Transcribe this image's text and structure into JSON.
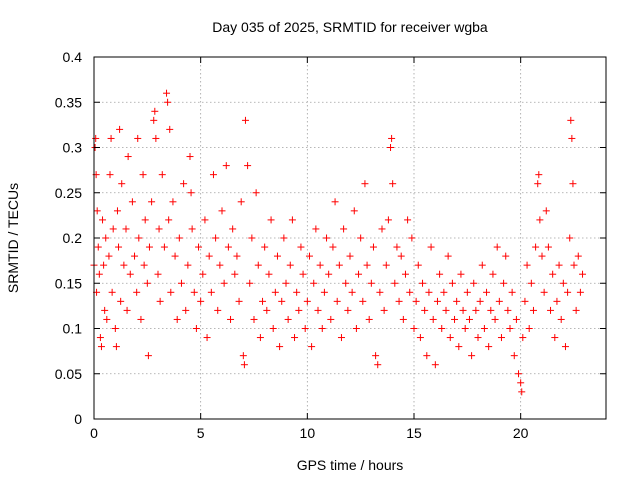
{
  "chart_data": {
    "type": "scatter",
    "title": "Day 035 of 2025, SRMTID for receiver wgba",
    "xlabel": "GPS time / hours",
    "ylabel": "SRMTID / TECUs",
    "xlim": [
      0,
      24
    ],
    "ylim": [
      0,
      0.4
    ],
    "xticks": [
      0,
      5,
      10,
      15,
      20
    ],
    "xtick_labels": [
      "0",
      "5",
      "10",
      "15",
      "20"
    ],
    "yticks": [
      0,
      0.05,
      0.1,
      0.15,
      0.2,
      0.25,
      0.3,
      0.35,
      0.4
    ],
    "ytick_labels": [
      "0",
      "0.05",
      "0.1",
      "0.15",
      "0.2",
      "0.25",
      "0.3",
      "0.35",
      "0.4"
    ],
    "grid": true,
    "marker": "+",
    "color": "#ff0000",
    "series": [
      {
        "name": "SRMTID",
        "points": [
          [
            0.0,
            0.17
          ],
          [
            0.05,
            0.3
          ],
          [
            0.08,
            0.31
          ],
          [
            0.1,
            0.27
          ],
          [
            0.12,
            0.14
          ],
          [
            0.15,
            0.23
          ],
          [
            0.2,
            0.19
          ],
          [
            0.25,
            0.16
          ],
          [
            0.3,
            0.09
          ],
          [
            0.35,
            0.08
          ],
          [
            0.4,
            0.22
          ],
          [
            0.45,
            0.17
          ],
          [
            0.5,
            0.12
          ],
          [
            0.55,
            0.2
          ],
          [
            0.6,
            0.11
          ],
          [
            0.7,
            0.18
          ],
          [
            0.75,
            0.27
          ],
          [
            0.8,
            0.31
          ],
          [
            0.85,
            0.14
          ],
          [
            0.9,
            0.21
          ],
          [
            1.0,
            0.1
          ],
          [
            1.05,
            0.08
          ],
          [
            1.1,
            0.23
          ],
          [
            1.15,
            0.19
          ],
          [
            1.2,
            0.32
          ],
          [
            1.25,
            0.13
          ],
          [
            1.3,
            0.26
          ],
          [
            1.4,
            0.17
          ],
          [
            1.5,
            0.21
          ],
          [
            1.55,
            0.12
          ],
          [
            1.6,
            0.29
          ],
          [
            1.7,
            0.16
          ],
          [
            1.8,
            0.24
          ],
          [
            1.9,
            0.18
          ],
          [
            2.0,
            0.14
          ],
          [
            2.05,
            0.31
          ],
          [
            2.1,
            0.2
          ],
          [
            2.2,
            0.11
          ],
          [
            2.3,
            0.27
          ],
          [
            2.35,
            0.17
          ],
          [
            2.4,
            0.22
          ],
          [
            2.5,
            0.15
          ],
          [
            2.55,
            0.07
          ],
          [
            2.6,
            0.19
          ],
          [
            2.7,
            0.24
          ],
          [
            2.8,
            0.33
          ],
          [
            2.85,
            0.34
          ],
          [
            2.9,
            0.31
          ],
          [
            3.0,
            0.16
          ],
          [
            3.05,
            0.21
          ],
          [
            3.1,
            0.13
          ],
          [
            3.2,
            0.27
          ],
          [
            3.3,
            0.19
          ],
          [
            3.4,
            0.36
          ],
          [
            3.45,
            0.35
          ],
          [
            3.5,
            0.22
          ],
          [
            3.55,
            0.32
          ],
          [
            3.6,
            0.14
          ],
          [
            3.7,
            0.24
          ],
          [
            3.8,
            0.18
          ],
          [
            3.9,
            0.11
          ],
          [
            4.0,
            0.2
          ],
          [
            4.1,
            0.15
          ],
          [
            4.2,
            0.26
          ],
          [
            4.3,
            0.12
          ],
          [
            4.4,
            0.17
          ],
          [
            4.5,
            0.29
          ],
          [
            4.55,
            0.25
          ],
          [
            4.6,
            0.21
          ],
          [
            4.7,
            0.14
          ],
          [
            4.8,
            0.1
          ],
          [
            4.9,
            0.19
          ],
          [
            5.0,
            0.13
          ],
          [
            5.1,
            0.16
          ],
          [
            5.2,
            0.22
          ],
          [
            5.3,
            0.09
          ],
          [
            5.4,
            0.18
          ],
          [
            5.5,
            0.14
          ],
          [
            5.6,
            0.27
          ],
          [
            5.7,
            0.2
          ],
          [
            5.8,
            0.12
          ],
          [
            5.9,
            0.17
          ],
          [
            6.0,
            0.23
          ],
          [
            6.1,
            0.15
          ],
          [
            6.2,
            0.28
          ],
          [
            6.3,
            0.19
          ],
          [
            6.4,
            0.11
          ],
          [
            6.5,
            0.21
          ],
          [
            6.6,
            0.16
          ],
          [
            6.7,
            0.18
          ],
          [
            6.8,
            0.13
          ],
          [
            6.9,
            0.24
          ],
          [
            7.0,
            0.07
          ],
          [
            7.05,
            0.06
          ],
          [
            7.1,
            0.33
          ],
          [
            7.2,
            0.28
          ],
          [
            7.3,
            0.15
          ],
          [
            7.4,
            0.2
          ],
          [
            7.5,
            0.11
          ],
          [
            7.6,
            0.25
          ],
          [
            7.7,
            0.17
          ],
          [
            7.8,
            0.09
          ],
          [
            7.9,
            0.13
          ],
          [
            8.0,
            0.19
          ],
          [
            8.1,
            0.12
          ],
          [
            8.2,
            0.16
          ],
          [
            8.3,
            0.22
          ],
          [
            8.4,
            0.1
          ],
          [
            8.5,
            0.14
          ],
          [
            8.6,
            0.18
          ],
          [
            8.7,
            0.08
          ],
          [
            8.8,
            0.13
          ],
          [
            8.9,
            0.2
          ],
          [
            9.0,
            0.15
          ],
          [
            9.1,
            0.11
          ],
          [
            9.2,
            0.17
          ],
          [
            9.3,
            0.22
          ],
          [
            9.4,
            0.09
          ],
          [
            9.5,
            0.14
          ],
          [
            9.6,
            0.12
          ],
          [
            9.7,
            0.19
          ],
          [
            9.8,
            0.16
          ],
          [
            9.9,
            0.1
          ],
          [
            10.0,
            0.13
          ],
          [
            10.1,
            0.18
          ],
          [
            10.2,
            0.08
          ],
          [
            10.3,
            0.15
          ],
          [
            10.4,
            0.21
          ],
          [
            10.5,
            0.12
          ],
          [
            10.6,
            0.17
          ],
          [
            10.7,
            0.1
          ],
          [
            10.8,
            0.14
          ],
          [
            10.9,
            0.2
          ],
          [
            11.0,
            0.16
          ],
          [
            11.1,
            0.11
          ],
          [
            11.2,
            0.19
          ],
          [
            11.3,
            0.24
          ],
          [
            11.4,
            0.13
          ],
          [
            11.5,
            0.17
          ],
          [
            11.6,
            0.09
          ],
          [
            11.7,
            0.21
          ],
          [
            11.8,
            0.15
          ],
          [
            11.9,
            0.12
          ],
          [
            12.0,
            0.18
          ],
          [
            12.1,
            0.14
          ],
          [
            12.2,
            0.23
          ],
          [
            12.3,
            0.1
          ],
          [
            12.4,
            0.16
          ],
          [
            12.5,
            0.2
          ],
          [
            12.6,
            0.13
          ],
          [
            12.7,
            0.26
          ],
          [
            12.8,
            0.17
          ],
          [
            12.9,
            0.11
          ],
          [
            13.0,
            0.15
          ],
          [
            13.1,
            0.19
          ],
          [
            13.2,
            0.07
          ],
          [
            13.3,
            0.06
          ],
          [
            13.4,
            0.14
          ],
          [
            13.5,
            0.21
          ],
          [
            13.6,
            0.12
          ],
          [
            13.7,
            0.17
          ],
          [
            13.8,
            0.22
          ],
          [
            13.9,
            0.3
          ],
          [
            13.95,
            0.31
          ],
          [
            14.0,
            0.26
          ],
          [
            14.1,
            0.15
          ],
          [
            14.2,
            0.19
          ],
          [
            14.3,
            0.13
          ],
          [
            14.4,
            0.18
          ],
          [
            14.5,
            0.11
          ],
          [
            14.6,
            0.16
          ],
          [
            14.7,
            0.22
          ],
          [
            14.8,
            0.14
          ],
          [
            14.9,
            0.2
          ],
          [
            15.0,
            0.1
          ],
          [
            15.1,
            0.13
          ],
          [
            15.2,
            0.17
          ],
          [
            15.3,
            0.09
          ],
          [
            15.4,
            0.15
          ],
          [
            15.5,
            0.12
          ],
          [
            15.6,
            0.07
          ],
          [
            15.7,
            0.14
          ],
          [
            15.8,
            0.19
          ],
          [
            15.9,
            0.11
          ],
          [
            16.0,
            0.06
          ],
          [
            16.1,
            0.13
          ],
          [
            16.2,
            0.16
          ],
          [
            16.3,
            0.1
          ],
          [
            16.4,
            0.14
          ],
          [
            16.5,
            0.12
          ],
          [
            16.6,
            0.18
          ],
          [
            16.7,
            0.09
          ],
          [
            16.8,
            0.15
          ],
          [
            16.9,
            0.11
          ],
          [
            17.0,
            0.13
          ],
          [
            17.1,
            0.08
          ],
          [
            17.2,
            0.16
          ],
          [
            17.3,
            0.12
          ],
          [
            17.4,
            0.1
          ],
          [
            17.5,
            0.14
          ],
          [
            17.6,
            0.11
          ],
          [
            17.7,
            0.07
          ],
          [
            17.8,
            0.15
          ],
          [
            17.9,
            0.12
          ],
          [
            18.0,
            0.09
          ],
          [
            18.1,
            0.13
          ],
          [
            18.2,
            0.17
          ],
          [
            18.3,
            0.1
          ],
          [
            18.4,
            0.14
          ],
          [
            18.5,
            0.08
          ],
          [
            18.6,
            0.12
          ],
          [
            18.7,
            0.16
          ],
          [
            18.8,
            0.11
          ],
          [
            18.9,
            0.19
          ],
          [
            19.0,
            0.13
          ],
          [
            19.1,
            0.09
          ],
          [
            19.2,
            0.15
          ],
          [
            19.3,
            0.18
          ],
          [
            19.4,
            0.12
          ],
          [
            19.5,
            0.1
          ],
          [
            19.6,
            0.14
          ],
          [
            19.7,
            0.07
          ],
          [
            19.8,
            0.11
          ],
          [
            19.9,
            0.05
          ],
          [
            20.0,
            0.04
          ],
          [
            20.05,
            0.03
          ],
          [
            20.1,
            0.09
          ],
          [
            20.2,
            0.13
          ],
          [
            20.3,
            0.17
          ],
          [
            20.4,
            0.1
          ],
          [
            20.5,
            0.15
          ],
          [
            20.6,
            0.12
          ],
          [
            20.7,
            0.19
          ],
          [
            20.8,
            0.26
          ],
          [
            20.85,
            0.27
          ],
          [
            20.9,
            0.22
          ],
          [
            21.0,
            0.18
          ],
          [
            21.1,
            0.14
          ],
          [
            21.2,
            0.23
          ],
          [
            21.3,
            0.19
          ],
          [
            21.4,
            0.12
          ],
          [
            21.5,
            0.16
          ],
          [
            21.6,
            0.09
          ],
          [
            21.7,
            0.13
          ],
          [
            21.8,
            0.17
          ],
          [
            21.9,
            0.11
          ],
          [
            22.0,
            0.15
          ],
          [
            22.1,
            0.08
          ],
          [
            22.2,
            0.14
          ],
          [
            22.3,
            0.2
          ],
          [
            22.35,
            0.33
          ],
          [
            22.4,
            0.31
          ],
          [
            22.45,
            0.26
          ],
          [
            22.5,
            0.17
          ],
          [
            22.6,
            0.12
          ],
          [
            22.7,
            0.18
          ],
          [
            22.8,
            0.14
          ],
          [
            22.9,
            0.16
          ]
        ]
      }
    ]
  }
}
